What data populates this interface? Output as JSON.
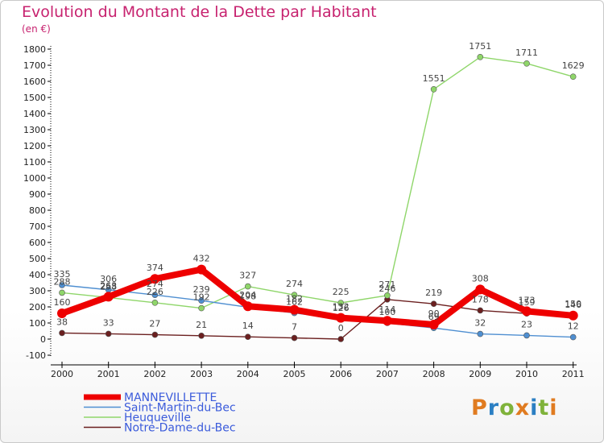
{
  "chart_data": {
    "type": "line",
    "title": "Evolution du Montant de la Dette par Habitant",
    "subtitle": "(en €)",
    "categories": [
      "2000",
      "2001",
      "2002",
      "2003",
      "2004",
      "2005",
      "2006",
      "2007",
      "2008",
      "2009",
      "2010",
      "2011"
    ],
    "y_ticks": [
      -100,
      0,
      100,
      200,
      300,
      400,
      500,
      600,
      700,
      800,
      900,
      1000,
      1100,
      1200,
      1300,
      1400,
      1500,
      1600,
      1700,
      1800
    ],
    "ylim": [
      -100,
      1800
    ],
    "grid": false,
    "legend_position": "bottom-left",
    "series": [
      {
        "name": "MANNEVILLETTE",
        "color": "#ee0000",
        "values": [
          160,
          263,
          374,
          432,
          204,
          182,
          132,
          114,
          90,
          308,
          173,
          146
        ]
      },
      {
        "name": "Saint-Martin-du-Bec",
        "color": "#4f8fd1",
        "values": [
          335,
          306,
          274,
          239,
          198,
          162,
          126,
          100,
          69,
          32,
          23,
          12
        ]
      },
      {
        "name": "Heuqueville",
        "color": "#8fd66a",
        "values": [
          288,
          258,
          226,
          192,
          327,
          274,
          225,
          271,
          1551,
          1751,
          1711,
          1629
        ]
      },
      {
        "name": "Notre-Dame-du-Bec",
        "color": "#6b1f1f",
        "values": [
          38,
          33,
          27,
          21,
          14,
          7,
          0,
          246,
          219,
          178,
          159,
          150
        ]
      }
    ]
  },
  "logo": {
    "p": "P",
    "r": "r",
    "o": "o",
    "x": "x",
    "i": "i",
    "t": "t",
    "i2": "i"
  }
}
